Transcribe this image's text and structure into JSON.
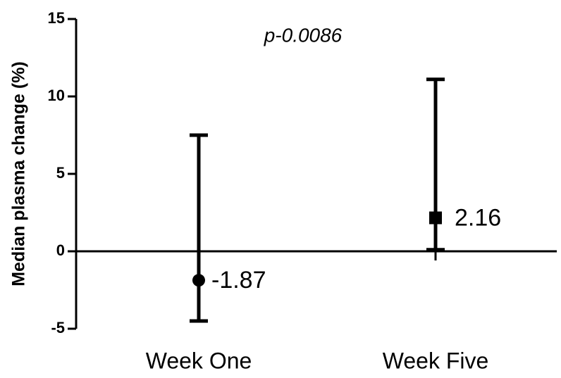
{
  "chart_data": {
    "type": "median-range",
    "y_label": "Median plasma change (%)",
    "annotation": "p-0.0086",
    "categories": [
      "Week One",
      "Week Five"
    ],
    "values": [
      -1.87,
      2.16
    ],
    "error_low": [
      -4.5,
      0.1
    ],
    "error_high": [
      7.5,
      11.1
    ],
    "markers": [
      "circle",
      "square"
    ],
    "color": "#000000",
    "ylim": [
      -5,
      15
    ],
    "yticks": [
      -5,
      0,
      5,
      10,
      15
    ]
  }
}
